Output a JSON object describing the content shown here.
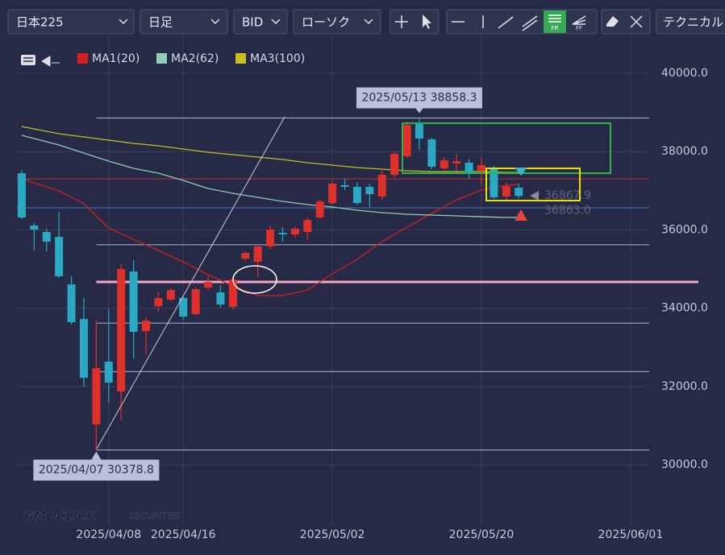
{
  "toolbar": {
    "symbol": "日本225",
    "timeframe": "日足",
    "price_type": "BID",
    "chart_style": "ローソク",
    "technical": "テクニカル"
  },
  "watermark": {
    "brand": "GMOCLICK",
    "suffix": "SECURITIES"
  },
  "chart_data": {
    "type": "candlestick",
    "up_color": "#e0302a",
    "down_color": "#2aa9c4",
    "xlim": [
      -0.45,
      50.5
    ],
    "xticks": [
      {
        "value": 7,
        "label": "2025/04/08"
      },
      {
        "value": 13,
        "label": "2025/04/16"
      },
      {
        "value": 25,
        "label": "2025/05/02"
      },
      {
        "value": 37,
        "label": "2025/05/20"
      },
      {
        "value": 49,
        "label": "2025/06/01"
      }
    ],
    "ylim": [
      28704,
      40844
    ],
    "yticks": [
      {
        "value": 30000,
        "label": "30000.0"
      },
      {
        "value": 32000,
        "label": "32000.0"
      },
      {
        "value": 34000,
        "label": "34000.0"
      },
      {
        "value": 36000,
        "label": "36000.0"
      },
      {
        "value": 38000,
        "label": "38000.0"
      },
      {
        "value": 40000,
        "label": "40000.0"
      }
    ],
    "grid": true,
    "candles": {
      "x": [
        0,
        1,
        2,
        3,
        4,
        5,
        6,
        7,
        8,
        9,
        10,
        11,
        12,
        13,
        14,
        15,
        16,
        17,
        18,
        19,
        20,
        21,
        22,
        23,
        24,
        25,
        26,
        27,
        28,
        29,
        30,
        31,
        32,
        33,
        34,
        35,
        36,
        37,
        38,
        39,
        40
      ],
      "open": [
        37449,
        36111,
        35947,
        35823,
        34609,
        33724,
        31029,
        32634,
        31872,
        34938,
        33416,
        34053,
        34218,
        34259,
        33848,
        34527,
        34403,
        34033,
        35267,
        35185,
        35576,
        35926,
        35885,
        35947,
        36317,
        36687,
        37140,
        37099,
        37099,
        36852,
        37407,
        37881,
        38704,
        38313,
        37572,
        37695,
        37716,
        37510,
        37551,
        36852,
        37078
      ],
      "high": [
        37531,
        36173,
        36029,
        36461,
        34815,
        34259,
        33683,
        33971,
        35123,
        35226,
        33765,
        34403,
        34527,
        34300,
        34527,
        34835,
        34588,
        34815,
        35453,
        35638,
        36111,
        36070,
        36091,
        36317,
        36770,
        37243,
        37305,
        37222,
        37181,
        37551,
        38004,
        38765,
        38858.3,
        38354,
        37860,
        37942,
        37798,
        37860,
        37634,
        37202,
        37181
      ],
      "low": [
        36276,
        35473,
        35453,
        34774,
        33580,
        31996,
        30378.8,
        31584,
        31132,
        32716,
        32819,
        33909,
        34177,
        33704,
        33807,
        34465,
        34012,
        33971,
        35206,
        34794,
        35514,
        35700,
        35802,
        35741,
        36276,
        36646,
        37016,
        36646,
        36584,
        36770,
        37346,
        37840,
        38045,
        37551,
        37531,
        37510,
        37305,
        37140,
        36790,
        36770,
        36811
      ],
      "close": [
        36317,
        36008,
        35700,
        34815,
        33642,
        32222,
        32469,
        32099,
        35000,
        33395,
        33683,
        34259,
        34465,
        33786,
        34486,
        34671,
        34095,
        34733,
        35412,
        35576,
        36008,
        35885,
        36029,
        36255,
        36728,
        37181,
        37099,
        36687,
        36914,
        37407,
        37942,
        38683,
        38333,
        37613,
        37778,
        37757,
        37469,
        37654,
        36831,
        37119,
        36867.9
      ]
    },
    "series": [
      {
        "name": "MA1(20)",
        "color": "#d4201c",
        "x": [
          0,
          3,
          5,
          7,
          9,
          11,
          13,
          15,
          17,
          19,
          21,
          23,
          25,
          27,
          29,
          31,
          33,
          35,
          37,
          39,
          40
        ],
        "values": [
          37305,
          36996,
          36667,
          36049,
          35761,
          35473,
          35185,
          34856,
          34568,
          34321,
          34321,
          34465,
          34877,
          35247,
          35700,
          36070,
          36420,
          36770,
          37016,
          37140,
          37160
        ]
      },
      {
        "name": "MA2(62)",
        "color": "#8fcfb4",
        "x": [
          0,
          3,
          5,
          7,
          9,
          11,
          13,
          15,
          17,
          19,
          21,
          23,
          25,
          27,
          29,
          31,
          33,
          35,
          37,
          39,
          40
        ],
        "values": [
          38416,
          38169,
          37963,
          37757,
          37572,
          37449,
          37263,
          37058,
          36934,
          36831,
          36728,
          36646,
          36584,
          36502,
          36440,
          36399,
          36379,
          36358,
          36337,
          36317,
          36317
        ]
      },
      {
        "name": "MA3(100)",
        "color": "#c8c020",
        "x": [
          0,
          3,
          5,
          7,
          9,
          11,
          13,
          15,
          17,
          19,
          21,
          23,
          25,
          27,
          29,
          31,
          33,
          35,
          37,
          39,
          40
        ],
        "values": [
          38642,
          38457,
          38374,
          38292,
          38210,
          38148,
          38066,
          37984,
          37922,
          37860,
          37798,
          37716,
          37654,
          37593,
          37551,
          37510,
          37490,
          37490,
          37490,
          37469,
          37469
        ]
      }
    ],
    "fibonacci": {
      "x": 6,
      "color": "#b4b8c8",
      "levels": [
        38858.3,
        35619,
        33618,
        32380,
        30378.8
      ]
    },
    "hlines": [
      {
        "value": 37305,
        "color": "#c0303a"
      },
      {
        "value": 36564,
        "color": "#4a70c0"
      },
      {
        "value": 34671,
        "color": "#f4a6c6",
        "x": 6
      }
    ],
    "annotations": [
      {
        "text": "2025/05/13 38858.3",
        "x": 32,
        "value": 38858.3
      },
      {
        "text": "2025/04/07 30378.8",
        "x": 6,
        "value": 30378.8
      }
    ],
    "price_labels": [
      {
        "value": 36867.9,
        "label": "36867.9"
      },
      {
        "value": 36863.0,
        "label": "36863.0"
      }
    ]
  }
}
